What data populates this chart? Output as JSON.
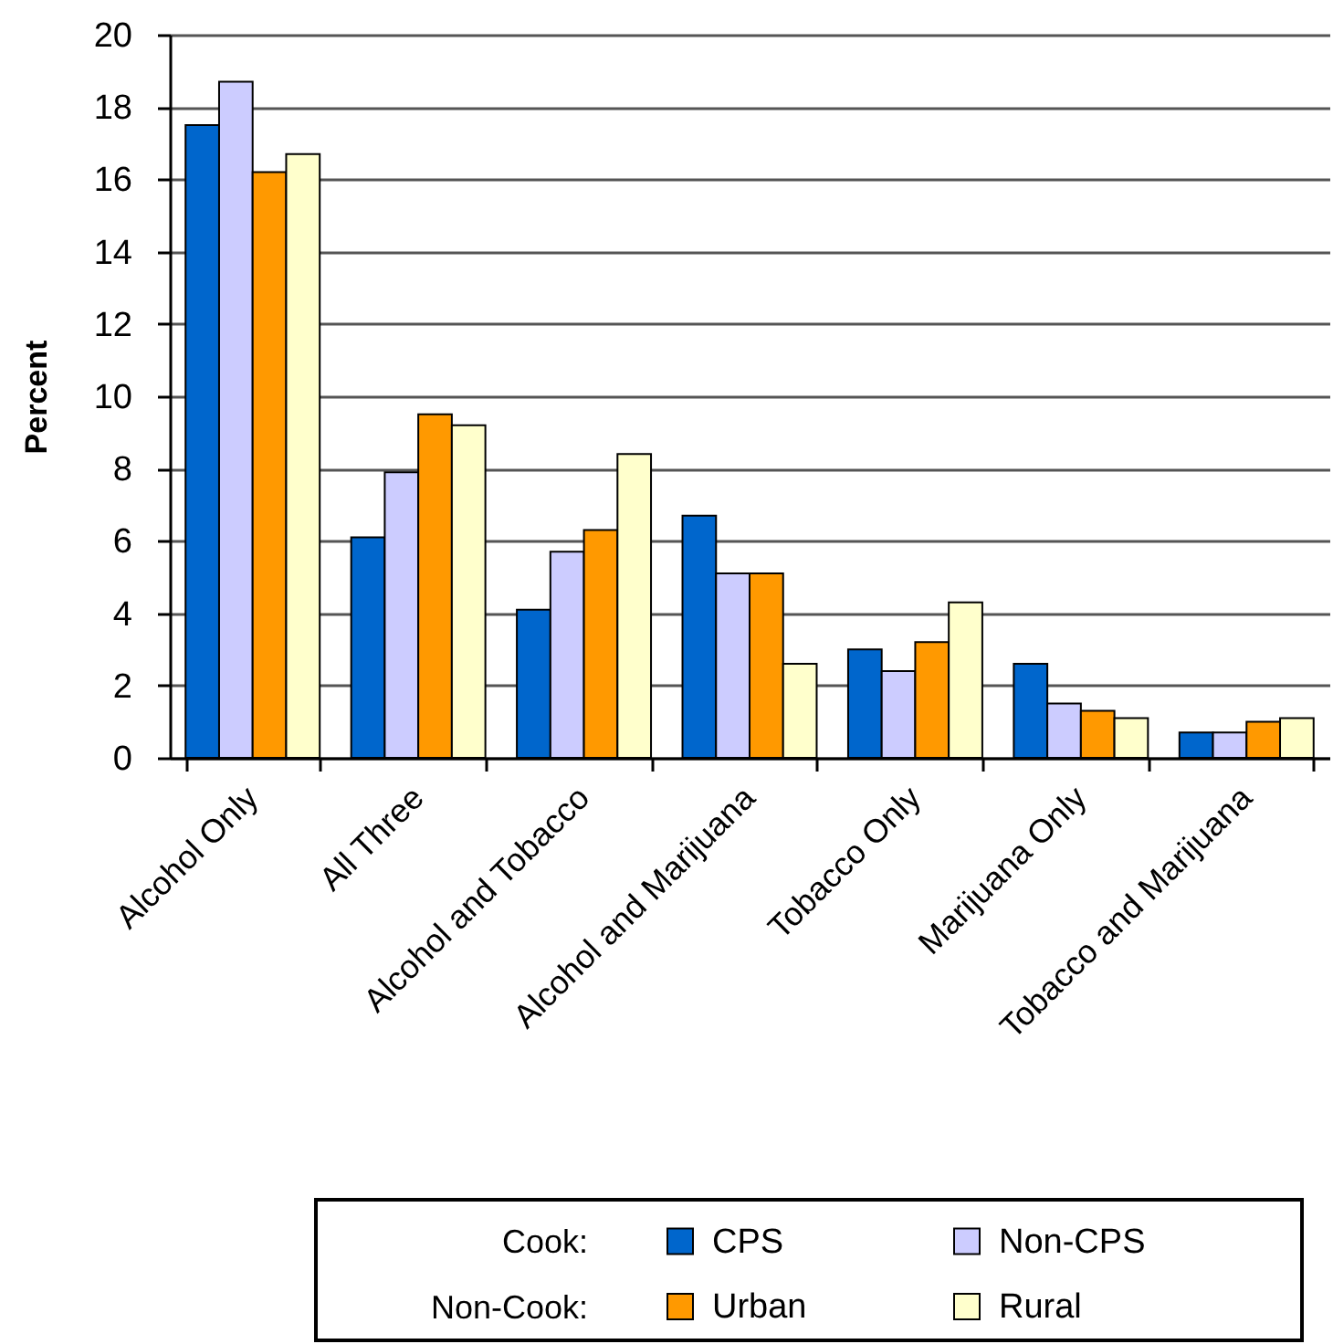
{
  "chart_data": {
    "type": "bar",
    "ylabel": "Percent",
    "categories": [
      "Alcohol Only",
      "All Three",
      "Alcohol and Tobacco",
      "Alcohol and Marijuana",
      "Tobacco Only",
      "Marijuana Only",
      "Tobacco and Marijuana"
    ],
    "series": [
      {
        "name": "CPS",
        "color": "#0066cc",
        "values": [
          17.5,
          6.1,
          4.1,
          6.7,
          3.0,
          2.6,
          0.7
        ]
      },
      {
        "name": "Non-CPS",
        "color": "#ccccff",
        "values": [
          18.7,
          7.9,
          5.7,
          5.1,
          2.4,
          1.5,
          0.7
        ]
      },
      {
        "name": "Urban",
        "color": "#ff9900",
        "values": [
          16.2,
          9.5,
          6.3,
          5.1,
          3.2,
          1.3,
          1.0
        ]
      },
      {
        "name": "Rural",
        "color": "#ffffcc",
        "values": [
          16.7,
          9.2,
          8.4,
          2.6,
          4.3,
          1.1,
          1.1
        ]
      }
    ],
    "ylim": [
      0,
      20
    ],
    "yticks": [
      0,
      2,
      4,
      6,
      8,
      10,
      12,
      14,
      16,
      18,
      20
    ],
    "grid": "y",
    "legend": "bottom",
    "annotations": [
      "Cook:",
      "Non-Cook:"
    ]
  }
}
